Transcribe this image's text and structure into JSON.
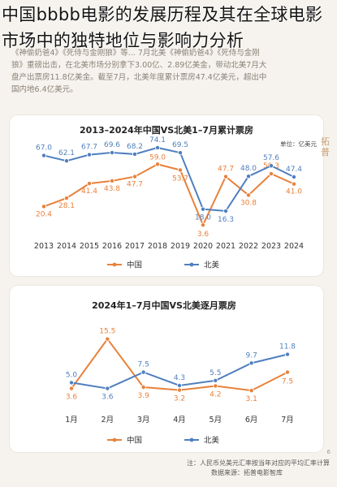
{
  "headline": "中国bbbb电影的发展历程及其在全球电影市场中的独特地位与影响力分析",
  "article_lines": [
    "《神偷奶爸4》《死侍与金刚狼》等... 7月北美《神偷奶爸4》《死侍与金刚",
    "狼》重磅出击，在北美市场分别拿下3.00亿、2.89亿美金，带动北美7月大",
    "盘产出票房11.8亿美金。截至7月，北美年度累计票房47.4亿美元，超出中",
    "国内地6.4亿美元。"
  ],
  "side_mark": "拓普",
  "footnote": {
    "line1": "注：人民币兑美元汇率按当年对应的平均汇率计算",
    "line2": "数据来源：拓普电影智库"
  },
  "page_number": "6",
  "colors": {
    "china": "#e8813a",
    "na": "#4f7fbf"
  },
  "chart_data": [
    {
      "type": "line",
      "title": "2013–2024年中国VS北美1–7月累计票房",
      "unit": "单位：亿美元",
      "categories": [
        "2013",
        "2014",
        "2015",
        "2016",
        "2017",
        "2018",
        "2019",
        "2020",
        "2021",
        "2022",
        "2023",
        "2024"
      ],
      "ylim": [
        0,
        80
      ],
      "legend_position": "bottom",
      "series": [
        {
          "name": "中国",
          "values": [
            20.4,
            28.1,
            41.4,
            43.8,
            47.7,
            59.0,
            53.7,
            3.6,
            47.7,
            30.8,
            50.3,
            41.0
          ]
        },
        {
          "name": "北美",
          "values": [
            67.0,
            62.1,
            67.7,
            69.6,
            68.2,
            74.1,
            69.5,
            18.0,
            16.3,
            48.0,
            57.6,
            47.4
          ]
        }
      ]
    },
    {
      "type": "line",
      "title": "2024年1–7月中国VS北美逐月票房",
      "categories": [
        "1月",
        "2月",
        "3月",
        "4月",
        "5月",
        "6月",
        "7月"
      ],
      "ylim": [
        0,
        17
      ],
      "legend_position": "bottom",
      "series": [
        {
          "name": "中国",
          "values": [
            3.6,
            15.5,
            3.9,
            3.2,
            4.2,
            3.1,
            7.5
          ]
        },
        {
          "name": "北美",
          "values": [
            5.0,
            3.6,
            7.5,
            4.3,
            5.5,
            9.7,
            11.8
          ]
        }
      ]
    }
  ]
}
